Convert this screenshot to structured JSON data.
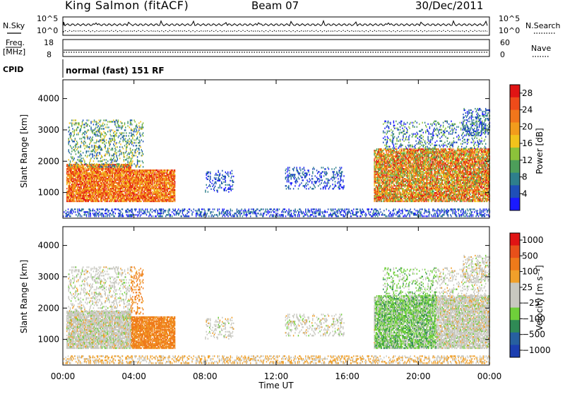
{
  "header": {
    "site": "King Salmon (fitACF)",
    "beam": "Beam 07",
    "date": "30/Dec/2011"
  },
  "labels": {
    "nsky": "N.Sky",
    "nsearch": "N.Search",
    "freq_top": "Freq.",
    "freq_unit": "[MHz]",
    "nave": "Nave",
    "cpid": "CPID",
    "mode": "normal (fast) 151 RF",
    "noise_tick_hi": "10^5",
    "noise_tick_lo": "10^0",
    "noise_tick_hi_r": "10^5",
    "noise_tick_lo_r": "10^0",
    "freq_tick_hi": "18",
    "freq_tick_lo": "8",
    "nave_tick_hi": "60",
    "nave_tick_lo": "0"
  },
  "chart_data": [
    {
      "type": "heatmap",
      "name": "power",
      "ylabel": "Slant Range [km]",
      "xlabel": "",
      "xlim": [
        0,
        24
      ],
      "ylim": [
        180,
        4600
      ],
      "yticks": [
        "1000",
        "2000",
        "3000",
        "4000"
      ],
      "yticks_values": [
        1000,
        2000,
        3000,
        4000
      ],
      "colorbar": {
        "label": "Power [dB]",
        "ticks": [
          "4",
          "8",
          "12",
          "16",
          "20",
          "24",
          "28"
        ],
        "tick_values": [
          4,
          8,
          12,
          16,
          20,
          24,
          28
        ],
        "range": [
          0,
          30
        ],
        "colors": [
          "#1a1aff",
          "#1f4fb8",
          "#2e7f8c",
          "#4d9e5a",
          "#8cc23a",
          "#f2c31c",
          "#f39c1c",
          "#f2761b",
          "#ee4b1a",
          "#e01414"
        ]
      }
    },
    {
      "type": "heatmap",
      "name": "velocity",
      "ylabel": "Slant Range [km]",
      "xlabel": "Time UT",
      "xlim": [
        0,
        24
      ],
      "ylim": [
        180,
        4600
      ],
      "yticks": [
        "1000",
        "2000",
        "3000",
        "4000"
      ],
      "yticks_values": [
        1000,
        2000,
        3000,
        4000
      ],
      "xticks": [
        "00:00",
        "04:00",
        "08:00",
        "12:00",
        "16:00",
        "20:00",
        "00:00"
      ],
      "xticks_values": [
        0,
        4,
        8,
        12,
        16,
        20,
        24
      ],
      "colorbar": {
        "label": "Velocity [m s⁻¹]",
        "ticks": [
          "1000",
          "500",
          "100",
          "25",
          "−25",
          "−100",
          "−500",
          "−1000"
        ],
        "colors": [
          "#1c3fb0",
          "#27609f",
          "#2f8a55",
          "#6fcf3a",
          "#c8c8c0",
          "#c8c8c0",
          "#f0a02a",
          "#ef7a1a",
          "#e8501a",
          "#e01414"
        ]
      }
    }
  ],
  "colors": {
    "ground_scatter": "#a9a9a9"
  }
}
